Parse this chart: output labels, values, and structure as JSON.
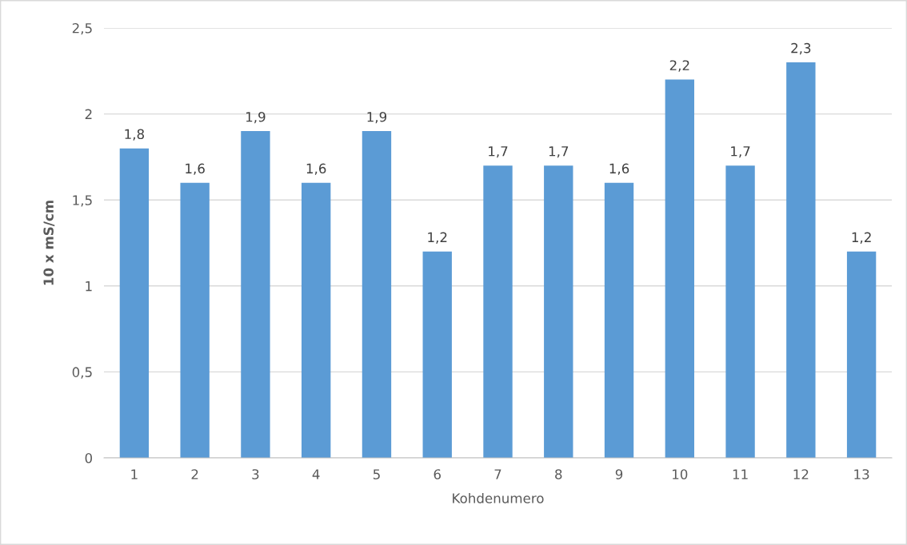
{
  "chart_data": {
    "type": "bar",
    "xlabel": "Kohdenumero",
    "ylabel": "10 x mS/cm",
    "categories": [
      "1",
      "2",
      "3",
      "4",
      "5",
      "6",
      "7",
      "8",
      "9",
      "10",
      "11",
      "12",
      "13"
    ],
    "values": [
      1.8,
      1.6,
      1.9,
      1.6,
      1.9,
      1.2,
      1.7,
      1.7,
      1.6,
      2.2,
      1.7,
      2.3,
      1.2
    ],
    "value_labels": [
      "1,8",
      "1,6",
      "1,9",
      "1,6",
      "1,9",
      "1,2",
      "1,7",
      "1,7",
      "1,6",
      "2,2",
      "1,7",
      "2,3",
      "1,2"
    ],
    "color": "#5b9bd5",
    "ylim": [
      0,
      2.5
    ],
    "yticks": [
      0,
      {
        "value": 0.5,
        "label": "0,5"
      },
      1,
      {
        "value": 1.5,
        "label": "1,5"
      },
      2,
      {
        "value": 2.5,
        "label": "2,5"
      }
    ],
    "grid": "y"
  }
}
